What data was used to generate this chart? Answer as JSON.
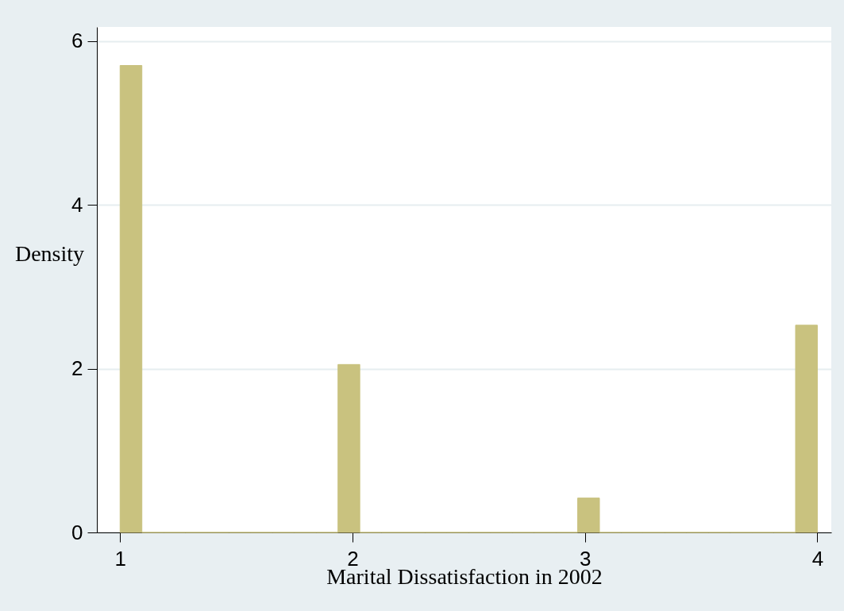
{
  "chart_data": {
    "type": "histogram",
    "xlabel": "Marital Dissatisfaction in 2002",
    "ylabel": "Density",
    "bins": [
      1,
      1.09375,
      1.1875,
      1.28125,
      1.375,
      1.46875,
      1.5625,
      1.65625,
      1.75,
      1.84375,
      1.9375,
      2.03125,
      2.125,
      2.21875,
      2.3125,
      2.40625,
      2.5,
      2.59375,
      2.6875,
      2.78125,
      2.875,
      2.96875,
      3.0625,
      3.15625,
      3.25,
      3.34375,
      3.4375,
      3.53125,
      3.625,
      3.71875,
      3.8125,
      3.90625,
      4
    ],
    "values": [
      5.7,
      0,
      0,
      0,
      0,
      0,
      0,
      0,
      0,
      0,
      2.05,
      0,
      0,
      0,
      0,
      0,
      0,
      0,
      0,
      0,
      0,
      0.42,
      0,
      0,
      0,
      0,
      0,
      0,
      0,
      0,
      0,
      2.53
    ],
    "color": "#c9c27f",
    "xlim": [
      0.9,
      4.06
    ],
    "xticks": [
      1,
      2,
      3,
      4
    ],
    "ylim": [
      0,
      6.17
    ],
    "yticks": [
      0,
      2,
      4,
      6
    ],
    "grid": "y"
  }
}
